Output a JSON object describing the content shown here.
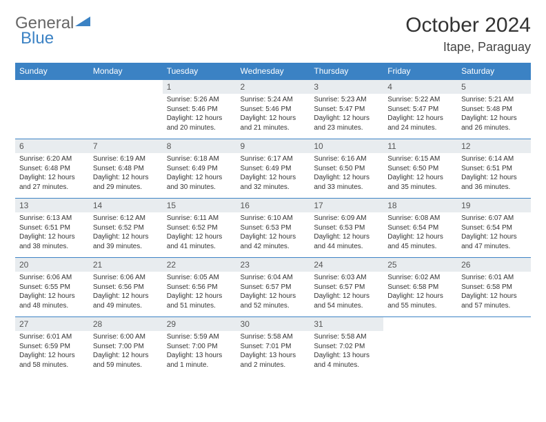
{
  "brand": {
    "part1": "General",
    "part2": "Blue"
  },
  "title": "October 2024",
  "location": "Itape, Paraguay",
  "colors": {
    "header_bg": "#3b82c4",
    "header_text": "#ffffff",
    "daynum_bg": "#e8ecef",
    "border": "#3b82c4",
    "text": "#333333",
    "brand_blue": "#3b82c4",
    "brand_gray": "#666666",
    "background": "#ffffff"
  },
  "typography": {
    "title_fontsize": 30,
    "location_fontsize": 18,
    "header_fontsize": 12,
    "cell_fontsize": 10
  },
  "weekdays": [
    "Sunday",
    "Monday",
    "Tuesday",
    "Wednesday",
    "Thursday",
    "Friday",
    "Saturday"
  ],
  "weeks": [
    [
      null,
      null,
      {
        "day": "1",
        "sunrise": "Sunrise: 5:26 AM",
        "sunset": "Sunset: 5:46 PM",
        "daylight1": "Daylight: 12 hours",
        "daylight2": "and 20 minutes."
      },
      {
        "day": "2",
        "sunrise": "Sunrise: 5:24 AM",
        "sunset": "Sunset: 5:46 PM",
        "daylight1": "Daylight: 12 hours",
        "daylight2": "and 21 minutes."
      },
      {
        "day": "3",
        "sunrise": "Sunrise: 5:23 AM",
        "sunset": "Sunset: 5:47 PM",
        "daylight1": "Daylight: 12 hours",
        "daylight2": "and 23 minutes."
      },
      {
        "day": "4",
        "sunrise": "Sunrise: 5:22 AM",
        "sunset": "Sunset: 5:47 PM",
        "daylight1": "Daylight: 12 hours",
        "daylight2": "and 24 minutes."
      },
      {
        "day": "5",
        "sunrise": "Sunrise: 5:21 AM",
        "sunset": "Sunset: 5:48 PM",
        "daylight1": "Daylight: 12 hours",
        "daylight2": "and 26 minutes."
      }
    ],
    [
      {
        "day": "6",
        "sunrise": "Sunrise: 6:20 AM",
        "sunset": "Sunset: 6:48 PM",
        "daylight1": "Daylight: 12 hours",
        "daylight2": "and 27 minutes."
      },
      {
        "day": "7",
        "sunrise": "Sunrise: 6:19 AM",
        "sunset": "Sunset: 6:48 PM",
        "daylight1": "Daylight: 12 hours",
        "daylight2": "and 29 minutes."
      },
      {
        "day": "8",
        "sunrise": "Sunrise: 6:18 AM",
        "sunset": "Sunset: 6:49 PM",
        "daylight1": "Daylight: 12 hours",
        "daylight2": "and 30 minutes."
      },
      {
        "day": "9",
        "sunrise": "Sunrise: 6:17 AM",
        "sunset": "Sunset: 6:49 PM",
        "daylight1": "Daylight: 12 hours",
        "daylight2": "and 32 minutes."
      },
      {
        "day": "10",
        "sunrise": "Sunrise: 6:16 AM",
        "sunset": "Sunset: 6:50 PM",
        "daylight1": "Daylight: 12 hours",
        "daylight2": "and 33 minutes."
      },
      {
        "day": "11",
        "sunrise": "Sunrise: 6:15 AM",
        "sunset": "Sunset: 6:50 PM",
        "daylight1": "Daylight: 12 hours",
        "daylight2": "and 35 minutes."
      },
      {
        "day": "12",
        "sunrise": "Sunrise: 6:14 AM",
        "sunset": "Sunset: 6:51 PM",
        "daylight1": "Daylight: 12 hours",
        "daylight2": "and 36 minutes."
      }
    ],
    [
      {
        "day": "13",
        "sunrise": "Sunrise: 6:13 AM",
        "sunset": "Sunset: 6:51 PM",
        "daylight1": "Daylight: 12 hours",
        "daylight2": "and 38 minutes."
      },
      {
        "day": "14",
        "sunrise": "Sunrise: 6:12 AM",
        "sunset": "Sunset: 6:52 PM",
        "daylight1": "Daylight: 12 hours",
        "daylight2": "and 39 minutes."
      },
      {
        "day": "15",
        "sunrise": "Sunrise: 6:11 AM",
        "sunset": "Sunset: 6:52 PM",
        "daylight1": "Daylight: 12 hours",
        "daylight2": "and 41 minutes."
      },
      {
        "day": "16",
        "sunrise": "Sunrise: 6:10 AM",
        "sunset": "Sunset: 6:53 PM",
        "daylight1": "Daylight: 12 hours",
        "daylight2": "and 42 minutes."
      },
      {
        "day": "17",
        "sunrise": "Sunrise: 6:09 AM",
        "sunset": "Sunset: 6:53 PM",
        "daylight1": "Daylight: 12 hours",
        "daylight2": "and 44 minutes."
      },
      {
        "day": "18",
        "sunrise": "Sunrise: 6:08 AM",
        "sunset": "Sunset: 6:54 PM",
        "daylight1": "Daylight: 12 hours",
        "daylight2": "and 45 minutes."
      },
      {
        "day": "19",
        "sunrise": "Sunrise: 6:07 AM",
        "sunset": "Sunset: 6:54 PM",
        "daylight1": "Daylight: 12 hours",
        "daylight2": "and 47 minutes."
      }
    ],
    [
      {
        "day": "20",
        "sunrise": "Sunrise: 6:06 AM",
        "sunset": "Sunset: 6:55 PM",
        "daylight1": "Daylight: 12 hours",
        "daylight2": "and 48 minutes."
      },
      {
        "day": "21",
        "sunrise": "Sunrise: 6:06 AM",
        "sunset": "Sunset: 6:56 PM",
        "daylight1": "Daylight: 12 hours",
        "daylight2": "and 49 minutes."
      },
      {
        "day": "22",
        "sunrise": "Sunrise: 6:05 AM",
        "sunset": "Sunset: 6:56 PM",
        "daylight1": "Daylight: 12 hours",
        "daylight2": "and 51 minutes."
      },
      {
        "day": "23",
        "sunrise": "Sunrise: 6:04 AM",
        "sunset": "Sunset: 6:57 PM",
        "daylight1": "Daylight: 12 hours",
        "daylight2": "and 52 minutes."
      },
      {
        "day": "24",
        "sunrise": "Sunrise: 6:03 AM",
        "sunset": "Sunset: 6:57 PM",
        "daylight1": "Daylight: 12 hours",
        "daylight2": "and 54 minutes."
      },
      {
        "day": "25",
        "sunrise": "Sunrise: 6:02 AM",
        "sunset": "Sunset: 6:58 PM",
        "daylight1": "Daylight: 12 hours",
        "daylight2": "and 55 minutes."
      },
      {
        "day": "26",
        "sunrise": "Sunrise: 6:01 AM",
        "sunset": "Sunset: 6:58 PM",
        "daylight1": "Daylight: 12 hours",
        "daylight2": "and 57 minutes."
      }
    ],
    [
      {
        "day": "27",
        "sunrise": "Sunrise: 6:01 AM",
        "sunset": "Sunset: 6:59 PM",
        "daylight1": "Daylight: 12 hours",
        "daylight2": "and 58 minutes."
      },
      {
        "day": "28",
        "sunrise": "Sunrise: 6:00 AM",
        "sunset": "Sunset: 7:00 PM",
        "daylight1": "Daylight: 12 hours",
        "daylight2": "and 59 minutes."
      },
      {
        "day": "29",
        "sunrise": "Sunrise: 5:59 AM",
        "sunset": "Sunset: 7:00 PM",
        "daylight1": "Daylight: 13 hours",
        "daylight2": "and 1 minute."
      },
      {
        "day": "30",
        "sunrise": "Sunrise: 5:58 AM",
        "sunset": "Sunset: 7:01 PM",
        "daylight1": "Daylight: 13 hours",
        "daylight2": "and 2 minutes."
      },
      {
        "day": "31",
        "sunrise": "Sunrise: 5:58 AM",
        "sunset": "Sunset: 7:02 PM",
        "daylight1": "Daylight: 13 hours",
        "daylight2": "and 4 minutes."
      },
      null,
      null
    ]
  ]
}
